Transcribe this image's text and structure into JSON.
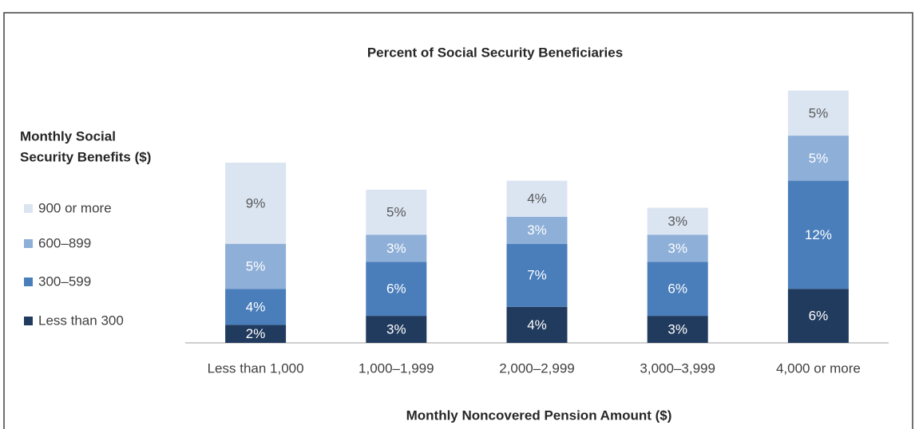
{
  "chart_data": {
    "type": "stacked-bar",
    "title": "Percent of Social Security Beneficiaries",
    "x_label": "Monthly Noncovered Pension Amount ($)",
    "legend_title": [
      "Monthly Social",
      "Security Benefits ($)"
    ],
    "categories": [
      "Less than 1,000",
      "1,000–1,999",
      "2,000–2,999",
      "3,000–3,999",
      "4,000 or more"
    ],
    "series": [
      {
        "name": "Less than 300",
        "color": "#213b5e",
        "values": [
          2,
          3,
          4,
          3,
          6
        ],
        "value_labels": [
          "2%",
          "3%",
          "4%",
          "3%",
          "6%"
        ]
      },
      {
        "name": "300–599",
        "color": "#4a7ebb",
        "values": [
          4,
          6,
          7,
          6,
          12
        ],
        "value_labels": [
          "4%",
          "6%",
          "7%",
          "6%",
          "12%"
        ]
      },
      {
        "name": "600–899",
        "color": "#8eafd8",
        "values": [
          5,
          3,
          3,
          3,
          5
        ],
        "value_labels": [
          "5%",
          "3%",
          "3%",
          "3%",
          "5%"
        ]
      },
      {
        "name": "900 or more",
        "color": "#dbe5f2",
        "values": [
          9,
          5,
          4,
          3,
          5
        ],
        "value_labels": [
          "9%",
          "5%",
          "4%",
          "3%",
          "5%"
        ]
      }
    ],
    "legend": "left"
  }
}
